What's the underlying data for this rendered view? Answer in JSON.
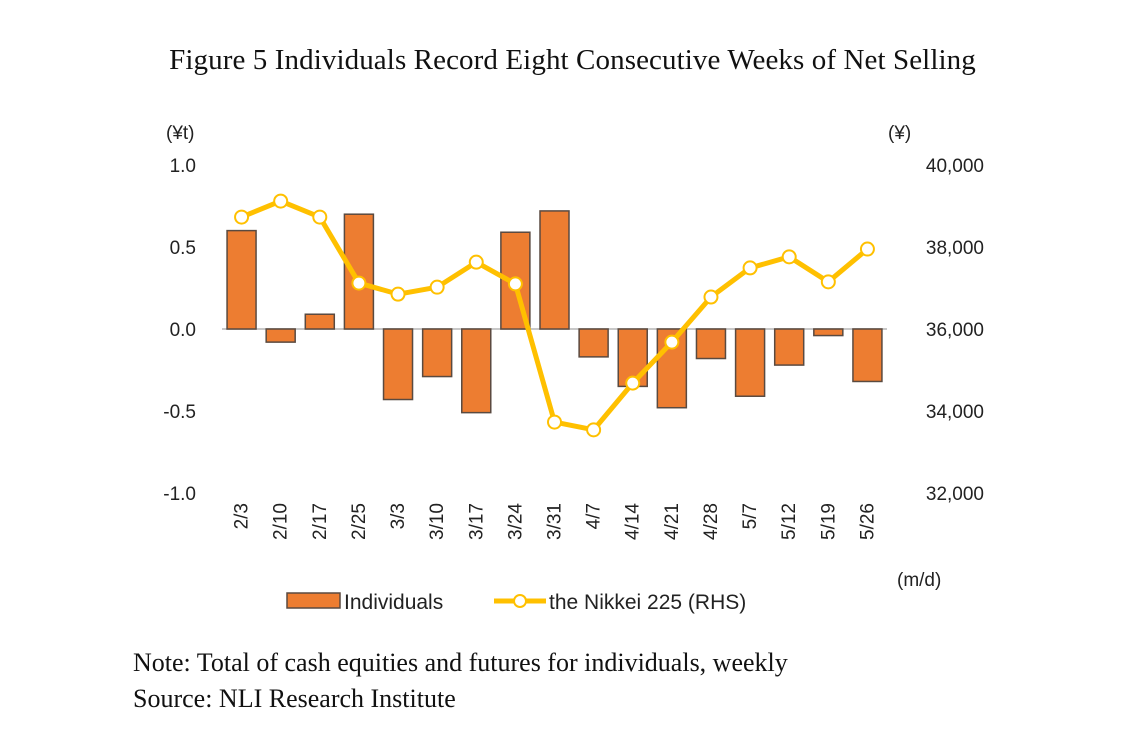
{
  "title": "Figure 5 Individuals Record Eight Consecutive Weeks of Net Selling",
  "notes": {
    "note": "Note: Total of cash equities and futures for individuals, weekly",
    "source": "Source: NLI Research Institute"
  },
  "colors": {
    "bar_fill": "#ED7D31",
    "bar_stroke": "#5a4a40",
    "line": "#FFC000",
    "marker_fill": "#FFFFFF",
    "zero_line": "#C8C8C8",
    "text": "#222222"
  },
  "chart_data": {
    "type": "bar+line",
    "title": "Figure 5 Individuals Record Eight Consecutive Weeks of Net Selling",
    "xlabel": "(m/d)",
    "ylabel_left": "(¥t)",
    "ylabel_right": "(¥)",
    "ylim_left": [
      -1.0,
      1.0
    ],
    "ylim_right": [
      32000,
      40000
    ],
    "yticks_left": [
      "1.0",
      "0.5",
      "0.0",
      "-0.5",
      "-1.0"
    ],
    "yticks_left_values": [
      1.0,
      0.5,
      0.0,
      -0.5,
      -1.0
    ],
    "yticks_right": [
      "40,000",
      "38,000",
      "36,000",
      "34,000",
      "32,000"
    ],
    "yticks_right_values": [
      40000,
      38000,
      36000,
      34000,
      32000
    ],
    "grid": false,
    "legend_position": "bottom",
    "categories": [
      "2/3",
      "2/10",
      "2/17",
      "2/25",
      "3/3",
      "3/10",
      "3/17",
      "3/24",
      "3/31",
      "4/7",
      "4/14",
      "4/21",
      "4/28",
      "5/7",
      "5/12",
      "5/19",
      "5/26"
    ],
    "series": [
      {
        "name": "Individuals",
        "type": "bar",
        "axis": "left",
        "values": [
          0.6,
          -0.08,
          0.09,
          0.7,
          -0.43,
          -0.29,
          -0.51,
          0.59,
          0.72,
          -0.17,
          -0.35,
          -0.48,
          -0.18,
          -0.41,
          -0.22,
          -0.04,
          -0.32
        ]
      },
      {
        "name": "the Nikkei 225 (RHS)",
        "type": "line",
        "axis": "right",
        "values": [
          38730,
          39120,
          38730,
          37120,
          36850,
          37020,
          37630,
          37100,
          33730,
          33540,
          34680,
          35680,
          36780,
          37490,
          37760,
          37150,
          37950
        ]
      }
    ]
  }
}
